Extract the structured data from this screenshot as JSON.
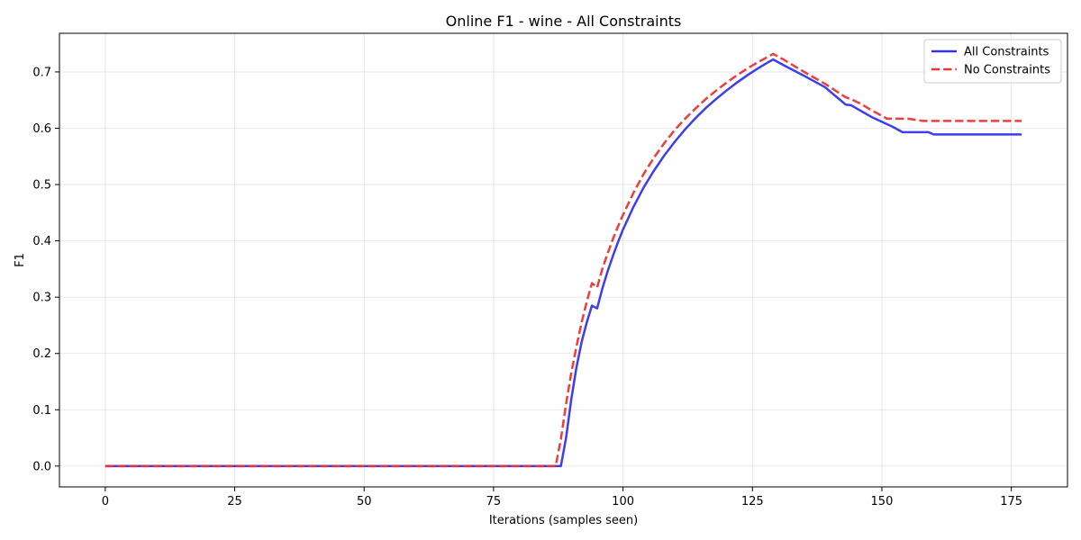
{
  "chart_data": {
    "type": "line",
    "title": "Online F1 - wine - All Constraints",
    "xlabel": "Iterations (samples seen)",
    "ylabel": "F1",
    "xlim": [
      -8.85,
      185.85
    ],
    "ylim": [
      -0.037,
      0.7686
    ],
    "xticks": [
      0,
      25,
      50,
      75,
      100,
      125,
      150,
      175
    ],
    "yticks": [
      0.0,
      0.1,
      0.2,
      0.3,
      0.4,
      0.5,
      0.6,
      0.7
    ],
    "ytick_labels": [
      "0.0",
      "0.1",
      "0.2",
      "0.3",
      "0.4",
      "0.5",
      "0.6",
      "0.7"
    ],
    "grid": true,
    "legend_position": "top-right",
    "series": [
      {
        "name": "All Constraints",
        "color": "#3333ee",
        "dash": "solid",
        "points": [
          [
            0,
            0.0
          ],
          [
            87,
            0.0
          ],
          [
            88,
            0.0
          ],
          [
            89,
            0.05
          ],
          [
            90,
            0.118
          ],
          [
            91,
            0.175
          ],
          [
            92,
            0.22
          ],
          [
            93,
            0.255
          ],
          [
            94,
            0.285
          ],
          [
            95,
            0.28
          ],
          [
            96,
            0.315
          ],
          [
            97,
            0.345
          ],
          [
            98,
            0.372
          ],
          [
            99,
            0.397
          ],
          [
            100,
            0.42
          ],
          [
            102,
            0.46
          ],
          [
            104,
            0.495
          ],
          [
            106,
            0.525
          ],
          [
            108,
            0.552
          ],
          [
            110,
            0.576
          ],
          [
            112,
            0.598
          ],
          [
            114,
            0.618
          ],
          [
            116,
            0.636
          ],
          [
            118,
            0.652
          ],
          [
            120,
            0.667
          ],
          [
            122,
            0.681
          ],
          [
            124,
            0.694
          ],
          [
            126,
            0.706
          ],
          [
            128,
            0.717
          ],
          [
            129,
            0.722
          ],
          [
            131,
            0.712
          ],
          [
            135,
            0.693
          ],
          [
            139,
            0.673
          ],
          [
            143,
            0.642
          ],
          [
            144,
            0.641
          ],
          [
            148,
            0.62
          ],
          [
            152,
            0.603
          ],
          [
            154,
            0.593
          ],
          [
            159,
            0.593
          ],
          [
            160,
            0.589
          ],
          [
            177,
            0.589
          ]
        ]
      },
      {
        "name": "No Constraints",
        "color": "#ee3333",
        "dash": "dashed",
        "points": [
          [
            0,
            0.0
          ],
          [
            87,
            0.0
          ],
          [
            88,
            0.048
          ],
          [
            89,
            0.11
          ],
          [
            90,
            0.165
          ],
          [
            91,
            0.212
          ],
          [
            92,
            0.255
          ],
          [
            93,
            0.292
          ],
          [
            94,
            0.325
          ],
          [
            95,
            0.317
          ],
          [
            96,
            0.35
          ],
          [
            97,
            0.377
          ],
          [
            98,
            0.402
          ],
          [
            99,
            0.425
          ],
          [
            100,
            0.446
          ],
          [
            102,
            0.485
          ],
          [
            104,
            0.519
          ],
          [
            106,
            0.548
          ],
          [
            108,
            0.574
          ],
          [
            110,
            0.597
          ],
          [
            112,
            0.617
          ],
          [
            114,
            0.635
          ],
          [
            116,
            0.652
          ],
          [
            118,
            0.667
          ],
          [
            120,
            0.681
          ],
          [
            122,
            0.694
          ],
          [
            124,
            0.706
          ],
          [
            126,
            0.717
          ],
          [
            128,
            0.727
          ],
          [
            129,
            0.732
          ],
          [
            131,
            0.722
          ],
          [
            135,
            0.7
          ],
          [
            139,
            0.679
          ],
          [
            143,
            0.655
          ],
          [
            144,
            0.652
          ],
          [
            146,
            0.643
          ],
          [
            148,
            0.632
          ],
          [
            151,
            0.617
          ],
          [
            155,
            0.617
          ],
          [
            158,
            0.613
          ],
          [
            177,
            0.613
          ]
        ]
      }
    ]
  }
}
